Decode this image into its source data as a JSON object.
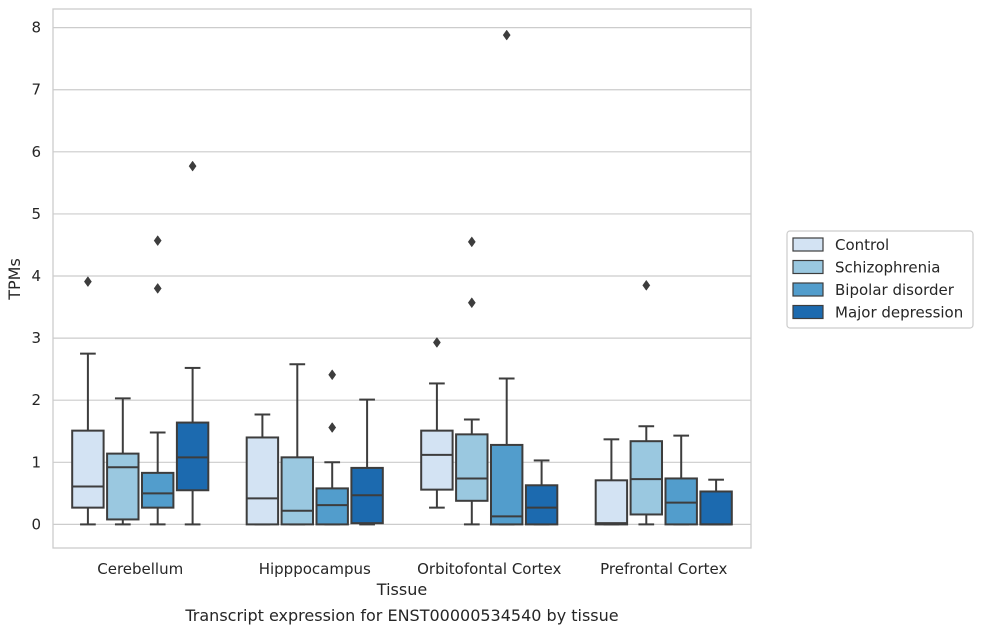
{
  "chart_data": {
    "type": "box",
    "xlabel": "Tissue",
    "ylabel": "TPMs",
    "caption": "Transcript expression for ENST00000534540 by tissue",
    "ylim": [
      -0.38,
      8.3
    ],
    "yticks": [
      0,
      1,
      2,
      3,
      4,
      5,
      6,
      7,
      8
    ],
    "grid": "horizontal",
    "legend_position": "right",
    "categories": [
      "Cerebellum",
      "Hipppocampus",
      "Orbitofontal Cortex",
      "Prefrontal Cortex"
    ],
    "series": [
      {
        "name": "Control",
        "color": "#d3e3f3",
        "boxes": [
          {
            "whislo": 0.0,
            "q1": 0.27,
            "med": 0.61,
            "q3": 1.51,
            "whishi": 2.75,
            "fliers": [
              3.91
            ]
          },
          {
            "whislo": 0.0,
            "q1": 0.0,
            "med": 0.42,
            "q3": 1.4,
            "whishi": 1.77,
            "fliers": []
          },
          {
            "whislo": 0.27,
            "q1": 0.56,
            "med": 1.12,
            "q3": 1.51,
            "whishi": 2.27,
            "fliers": [
              2.93
            ]
          },
          {
            "whislo": 0.0,
            "q1": 0.0,
            "med": 0.02,
            "q3": 0.71,
            "whishi": 1.37,
            "fliers": []
          }
        ]
      },
      {
        "name": "Schizophrenia",
        "color": "#9ac8e0",
        "boxes": [
          {
            "whislo": 0.0,
            "q1": 0.08,
            "med": 0.92,
            "q3": 1.14,
            "whishi": 2.03,
            "fliers": []
          },
          {
            "whislo": 0.0,
            "q1": 0.0,
            "med": 0.22,
            "q3": 1.08,
            "whishi": 2.58,
            "fliers": []
          },
          {
            "whislo": 0.0,
            "q1": 0.38,
            "med": 0.74,
            "q3": 1.45,
            "whishi": 1.69,
            "fliers": [
              3.57,
              4.55
            ]
          },
          {
            "whislo": 0.0,
            "q1": 0.16,
            "med": 0.73,
            "q3": 1.34,
            "whishi": 1.58,
            "fliers": [
              3.85
            ]
          }
        ]
      },
      {
        "name": "Bipolar disorder",
        "color": "#529dcc",
        "boxes": [
          {
            "whislo": 0.0,
            "q1": 0.27,
            "med": 0.5,
            "q3": 0.83,
            "whishi": 1.48,
            "fliers": [
              3.8,
              4.57
            ]
          },
          {
            "whislo": 0.0,
            "q1": 0.0,
            "med": 0.31,
            "q3": 0.58,
            "whishi": 1.0,
            "fliers": [
              1.56,
              2.41
            ]
          },
          {
            "whislo": 0.0,
            "q1": 0.0,
            "med": 0.13,
            "q3": 1.28,
            "whishi": 2.35,
            "fliers": [
              7.88
            ]
          },
          {
            "whislo": 0.0,
            "q1": 0.0,
            "med": 0.35,
            "q3": 0.74,
            "whishi": 1.43,
            "fliers": []
          }
        ]
      },
      {
        "name": "Major depression",
        "color": "#1c6aaf",
        "boxes": [
          {
            "whislo": 0.0,
            "q1": 0.55,
            "med": 1.08,
            "q3": 1.64,
            "whishi": 2.52,
            "fliers": [
              5.77
            ]
          },
          {
            "whislo": 0.0,
            "q1": 0.02,
            "med": 0.47,
            "q3": 0.91,
            "whishi": 2.01,
            "fliers": []
          },
          {
            "whislo": 0.0,
            "q1": 0.0,
            "med": 0.27,
            "q3": 0.63,
            "whishi": 1.03,
            "fliers": []
          },
          {
            "whislo": 0.0,
            "q1": 0.0,
            "med": 0.0,
            "q3": 0.53,
            "whishi": 0.72,
            "fliers": []
          }
        ]
      }
    ]
  }
}
